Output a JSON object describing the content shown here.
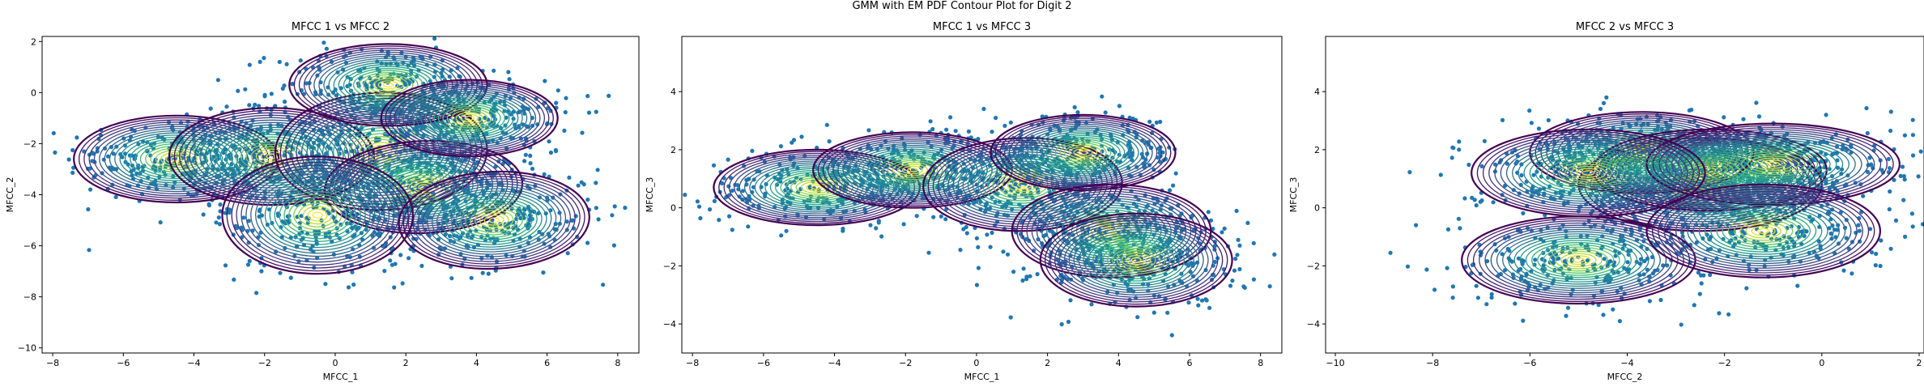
{
  "suptitle": "GMM with EM PDF Contour Plot for Digit 2",
  "chart_data": [
    {
      "type": "scatter",
      "title": "MFCC 1 vs MFCC 2",
      "xlabel": "MFCC_1",
      "ylabel": "MFCC_2",
      "xlim": [
        -8.3,
        8.6
      ],
      "ylim": [
        -10.2,
        2.2
      ],
      "xticks": [
        -8,
        -6,
        -4,
        -2,
        0,
        2,
        4,
        6,
        8
      ],
      "yticks": [
        -10,
        -8,
        -6,
        -4,
        -2,
        0,
        2
      ],
      "point_color": "#1f77b4",
      "contour_colormap": "viridis",
      "contour_levels": 20,
      "components": [
        {
          "mean": [
            -4.5,
            -2.6
          ],
          "sd": [
            2.9,
            1.7
          ],
          "corr": 0.0
        },
        {
          "mean": [
            -1.8,
            -2.5
          ],
          "sd": [
            2.9,
            1.9
          ],
          "corr": 0.0
        },
        {
          "mean": [
            1.3,
            -2.3
          ],
          "sd": [
            3.0,
            2.3
          ],
          "corr": 0.05
        },
        {
          "mean": [
            1.5,
            0.3
          ],
          "sd": [
            2.8,
            1.6
          ],
          "corr": 0.0
        },
        {
          "mean": [
            2.5,
            -3.7
          ],
          "sd": [
            2.8,
            1.8
          ],
          "corr": 0.1
        },
        {
          "mean": [
            4.5,
            -5.0
          ],
          "sd": [
            2.7,
            1.9
          ],
          "corr": 0.1
        },
        {
          "mean": [
            -0.5,
            -4.8
          ],
          "sd": [
            2.7,
            2.3
          ],
          "corr": 0.0
        },
        {
          "mean": [
            3.8,
            -1.0
          ],
          "sd": [
            2.5,
            1.5
          ],
          "corr": 0.0
        }
      ]
    },
    {
      "type": "scatter",
      "title": "MFCC 1 vs MFCC 3",
      "xlabel": "MFCC_1",
      "ylabel": "MFCC_3",
      "xlim": [
        -8.3,
        8.6
      ],
      "ylim": [
        -5.0,
        5.9
      ],
      "xticks": [
        -8,
        -6,
        -4,
        -2,
        0,
        2,
        4,
        6,
        8
      ],
      "yticks": [
        -4,
        -2,
        0,
        2,
        4
      ],
      "point_color": "#1f77b4",
      "contour_colormap": "viridis",
      "contour_levels": 20,
      "components": [
        {
          "mean": [
            -4.5,
            0.7
          ],
          "sd": [
            2.9,
            1.3
          ],
          "corr": 0.0
        },
        {
          "mean": [
            -1.8,
            1.3
          ],
          "sd": [
            2.8,
            1.3
          ],
          "corr": 0.0
        },
        {
          "mean": [
            1.3,
            0.8
          ],
          "sd": [
            2.8,
            1.6
          ],
          "corr": 0.05
        },
        {
          "mean": [
            3.0,
            1.9
          ],
          "sd": [
            2.6,
            1.3
          ],
          "corr": 0.0
        },
        {
          "mean": [
            3.8,
            -0.8
          ],
          "sd": [
            2.8,
            1.6
          ],
          "corr": 0.0
        },
        {
          "mean": [
            4.5,
            -1.8
          ],
          "sd": [
            2.7,
            1.6
          ],
          "corr": 0.0
        }
      ]
    },
    {
      "type": "scatter",
      "title": "MFCC 2 vs MFCC 3",
      "xlabel": "MFCC_2",
      "ylabel": "MFCC_3",
      "xlim": [
        -10.2,
        2.1
      ],
      "ylim": [
        -5.0,
        5.9
      ],
      "xticks": [
        -10,
        -8,
        -6,
        -4,
        -2,
        0,
        2
      ],
      "yticks": [
        -4,
        -2,
        0,
        2,
        4
      ],
      "point_color": "#1f77b4",
      "contour_colormap": "viridis",
      "contour_levels": 20,
      "components": [
        {
          "mean": [
            -2.5,
            0.8
          ],
          "sd": [
            2.5,
            1.6
          ],
          "corr": 0.0
        },
        {
          "mean": [
            -3.7,
            1.9
          ],
          "sd": [
            2.3,
            1.4
          ],
          "corr": 0.0
        },
        {
          "mean": [
            -5.0,
            -1.8
          ],
          "sd": [
            2.4,
            1.5
          ],
          "corr": 0.0
        },
        {
          "mean": [
            -2.3,
            1.3
          ],
          "sd": [
            2.4,
            1.4
          ],
          "corr": 0.0
        },
        {
          "mean": [
            -1.0,
            1.5
          ],
          "sd": [
            2.6,
            1.4
          ],
          "corr": 0.0
        },
        {
          "mean": [
            -1.2,
            -0.8
          ],
          "sd": [
            2.4,
            1.6
          ],
          "corr": 0.0
        },
        {
          "mean": [
            -4.8,
            1.2
          ],
          "sd": [
            2.4,
            1.5
          ],
          "corr": 0.0
        }
      ]
    }
  ]
}
